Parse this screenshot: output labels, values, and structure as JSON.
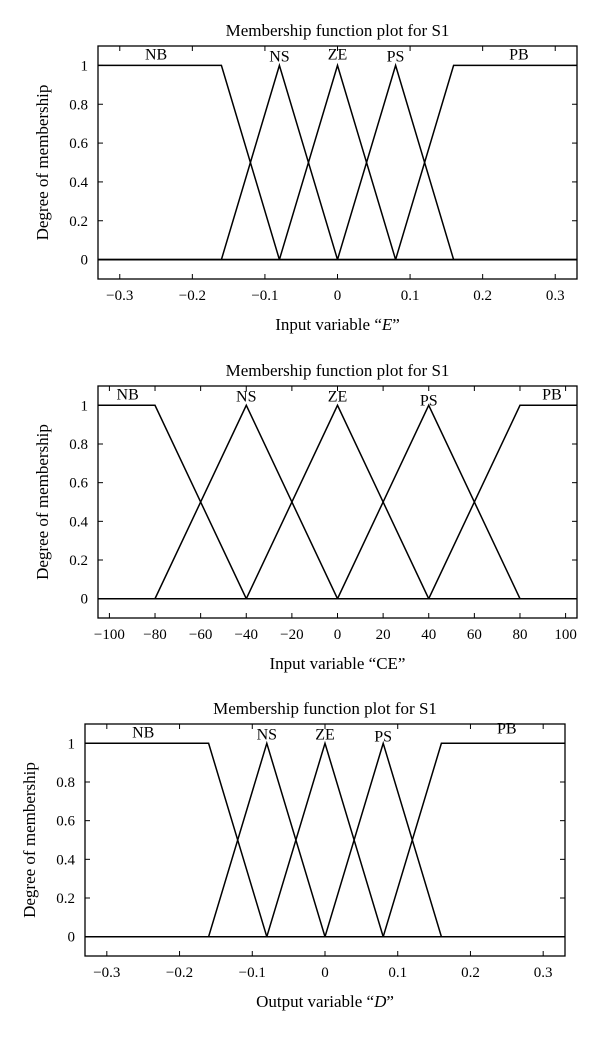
{
  "chart_data": [
    {
      "type": "line",
      "title": "Membership function plot for S1",
      "xlabel": "Input variable “E”",
      "xlabel_parts": [
        {
          "text": "Input variable “",
          "italic": false
        },
        {
          "text": "E",
          "italic": true
        },
        {
          "text": "”",
          "italic": false
        }
      ],
      "ylabel": "Degree of membership",
      "xlim": [
        -0.33,
        0.33
      ],
      "ylim": [
        -0.1,
        1.1
      ],
      "xticks": [
        -0.3,
        -0.2,
        -0.1,
        0,
        0.1,
        0.2,
        0.3
      ],
      "xtick_labels": [
        "−0.3",
        "−0.2",
        "−0.1",
        "0",
        "0.1",
        "0.2",
        "0.3"
      ],
      "yticks": [
        0,
        0.2,
        0.4,
        0.6,
        0.8,
        1
      ],
      "ytick_labels": [
        "0",
        "0.2",
        "0.4",
        "0.6",
        "0.8",
        "1"
      ],
      "grid": false,
      "series": [
        {
          "name": "NB",
          "x": [
            -0.33,
            -0.16,
            -0.08,
            0.33
          ],
          "y": [
            1,
            1,
            0,
            0
          ],
          "label_at": [
            -0.25,
            1.03
          ]
        },
        {
          "name": "NS",
          "x": [
            -0.33,
            -0.16,
            -0.08,
            0,
            0.33
          ],
          "y": [
            0,
            0,
            1,
            0,
            0
          ],
          "label_at": [
            -0.08,
            1.02
          ]
        },
        {
          "name": "ZE",
          "x": [
            -0.33,
            -0.08,
            0,
            0.08,
            0.33
          ],
          "y": [
            0,
            0,
            1,
            0,
            0
          ],
          "label_at": [
            0,
            1.03
          ]
        },
        {
          "name": "PS",
          "x": [
            -0.33,
            0,
            0.08,
            0.16,
            0.33
          ],
          "y": [
            0,
            0,
            1,
            0,
            0
          ],
          "label_at": [
            0.08,
            1.02
          ]
        },
        {
          "name": "PB",
          "x": [
            -0.33,
            0.08,
            0.16,
            0.33
          ],
          "y": [
            0,
            0,
            1,
            1
          ],
          "label_at": [
            0.25,
            1.03
          ]
        }
      ]
    },
    {
      "type": "line",
      "title": "Membership function plot for S1",
      "xlabel": "Input variable “CE”",
      "xlabel_parts": [
        {
          "text": "Input variable “CE”",
          "italic": false
        }
      ],
      "ylabel": "Degree of membership",
      "xlim": [
        -105,
        105
      ],
      "ylim": [
        -0.1,
        1.1
      ],
      "xticks": [
        -100,
        -80,
        -60,
        -40,
        -20,
        0,
        20,
        40,
        60,
        80,
        100
      ],
      "xtick_labels": [
        "−100",
        "−80",
        "−60",
        "−40",
        "−20",
        "0",
        "20",
        "40",
        "60",
        "80",
        "100"
      ],
      "yticks": [
        0,
        0.2,
        0.4,
        0.6,
        0.8,
        1
      ],
      "ytick_labels": [
        "0",
        "0.2",
        "0.4",
        "0.6",
        "0.8",
        "1"
      ],
      "grid": false,
      "series": [
        {
          "name": "NB",
          "x": [
            -105,
            -80,
            -40,
            105
          ],
          "y": [
            1,
            1,
            0,
            0
          ],
          "label_at": [
            -92,
            1.03
          ]
        },
        {
          "name": "NS",
          "x": [
            -105,
            -80,
            -40,
            0,
            105
          ],
          "y": [
            0,
            0,
            1,
            0,
            0
          ],
          "label_at": [
            -40,
            1.02
          ]
        },
        {
          "name": "ZE",
          "x": [
            -105,
            -40,
            0,
            40,
            105
          ],
          "y": [
            0,
            0,
            1,
            0,
            0
          ],
          "label_at": [
            0,
            1.02
          ]
        },
        {
          "name": "PS",
          "x": [
            -105,
            0,
            40,
            80,
            105
          ],
          "y": [
            0,
            0,
            1,
            0,
            0
          ],
          "label_at": [
            40,
            1.0
          ]
        },
        {
          "name": "PB",
          "x": [
            -105,
            40,
            80,
            105
          ],
          "y": [
            0,
            0,
            1,
            1
          ],
          "label_at": [
            94,
            1.03
          ]
        }
      ]
    },
    {
      "type": "line",
      "title": "Membership function plot for S1",
      "xlabel": "Output variable “D”",
      "xlabel_parts": [
        {
          "text": "Output variable “",
          "italic": false
        },
        {
          "text": "D",
          "italic": true
        },
        {
          "text": "”",
          "italic": false
        }
      ],
      "ylabel": "Degree of membership",
      "xlim": [
        -0.33,
        0.33
      ],
      "ylim": [
        -0.1,
        1.1
      ],
      "xticks": [
        -0.3,
        -0.2,
        -0.1,
        0,
        0.1,
        0.2,
        0.3
      ],
      "xtick_labels": [
        "−0.3",
        "−0.2",
        "−0.1",
        "0",
        "0.1",
        "0.2",
        "0.3"
      ],
      "yticks": [
        0,
        0.2,
        0.4,
        0.6,
        0.8,
        1
      ],
      "ytick_labels": [
        "0",
        "0.2",
        "0.4",
        "0.6",
        "0.8",
        "1"
      ],
      "grid": false,
      "series": [
        {
          "name": "NB",
          "x": [
            -0.33,
            -0.16,
            -0.08,
            0.33
          ],
          "y": [
            1,
            1,
            0,
            0
          ],
          "label_at": [
            -0.25,
            1.03
          ]
        },
        {
          "name": "NS",
          "x": [
            -0.33,
            -0.16,
            -0.08,
            0,
            0.33
          ],
          "y": [
            0,
            0,
            1,
            0,
            0
          ],
          "label_at": [
            -0.08,
            1.02
          ]
        },
        {
          "name": "ZE",
          "x": [
            -0.33,
            -0.08,
            0,
            0.08,
            0.33
          ],
          "y": [
            0,
            0,
            1,
            0,
            0
          ],
          "label_at": [
            0,
            1.02
          ]
        },
        {
          "name": "PS",
          "x": [
            -0.33,
            0,
            0.08,
            0.16,
            0.33
          ],
          "y": [
            0,
            0,
            1,
            0,
            0
          ],
          "label_at": [
            0.08,
            1.01
          ]
        },
        {
          "name": "PB",
          "x": [
            -0.33,
            0.08,
            0.16,
            0.33
          ],
          "y": [
            0,
            0,
            1,
            1
          ],
          "label_at": [
            0.25,
            1.05
          ]
        }
      ]
    }
  ]
}
